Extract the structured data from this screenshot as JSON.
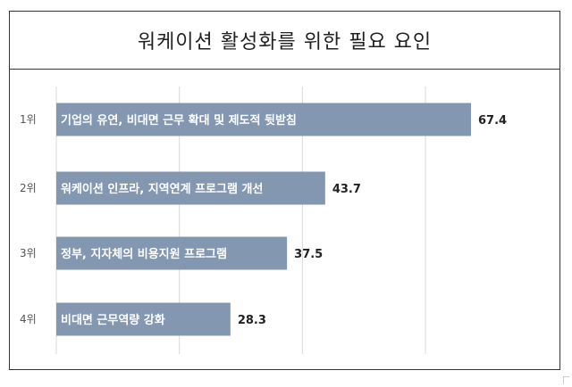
{
  "chart_data": {
    "type": "bar",
    "orientation": "horizontal",
    "title": "워케이션 활성화를 위한 필요 요인",
    "categories": [
      "1위",
      "2위",
      "3위",
      "4위"
    ],
    "bar_labels": [
      "기업의 유연, 비대면 근무 확대 및 제도적 뒷받침",
      "워케이션 인프라, 지역연계 프로그램 개선",
      "정부, 지자체의 비용지원 프로그램",
      "비대면 근무역량 강화"
    ],
    "values": [
      67.4,
      43.7,
      37.5,
      28.3
    ],
    "value_labels": [
      "67.4",
      "43.7",
      "37.5",
      "28.3"
    ],
    "xlim": [
      0,
      100
    ],
    "grid": true,
    "legend": "none",
    "bar_color": "#8497b0",
    "grid_color": "#d9d9d9"
  }
}
